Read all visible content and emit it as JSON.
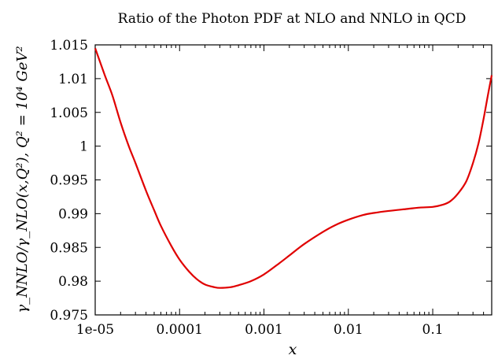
{
  "chart_data": {
    "type": "line",
    "title": "Ratio of the Photon PDF at NLO and NNLO in QCD",
    "xlabel": "x",
    "ylabel": "γ_NNLO/γ_NLO(x,Q²), Q² = 10⁴ GeV²",
    "xscale": "log",
    "xlim": [
      1e-05,
      0.5
    ],
    "ylim": [
      0.975,
      1.015
    ],
    "x_ticks": [
      1e-05,
      0.0001,
      0.001,
      0.01,
      0.1
    ],
    "x_tick_labels": [
      "1e-05",
      "0.0001",
      "0.001",
      "0.01",
      "0.1"
    ],
    "y_ticks": [
      0.975,
      0.98,
      0.985,
      0.99,
      0.995,
      1.0,
      1.005,
      1.01,
      1.015
    ],
    "y_tick_labels": [
      "0.975",
      "0.98",
      "0.985",
      "0.99",
      "0.995",
      "1",
      "1.005",
      "1.01",
      "1.015"
    ],
    "series": [
      {
        "color": "#e00000",
        "x": [
          1e-05,
          1.3e-05,
          1.6e-05,
          2e-05,
          2.5e-05,
          3e-05,
          4e-05,
          5e-05,
          6e-05,
          8e-05,
          0.0001,
          0.00013,
          0.00016,
          0.0002,
          0.00026,
          0.0003,
          0.0004,
          0.0005,
          0.0007,
          0.001,
          0.0015,
          0.002,
          0.003,
          0.005,
          0.007,
          0.01,
          0.015,
          0.02,
          0.03,
          0.05,
          0.07,
          0.1,
          0.13,
          0.16,
          0.2,
          0.25,
          0.3,
          0.35,
          0.4,
          0.45,
          0.5
        ],
        "y": [
          1.0145,
          1.0105,
          1.0075,
          1.0035,
          1.0,
          0.9975,
          0.9934,
          0.9905,
          0.9882,
          0.9852,
          0.9832,
          0.9814,
          0.9803,
          0.9795,
          0.9791,
          0.979,
          0.9791,
          0.9794,
          0.98,
          0.981,
          0.9826,
          0.9838,
          0.9855,
          0.9873,
          0.9883,
          0.9891,
          0.9898,
          0.9901,
          0.9904,
          0.9907,
          0.9909,
          0.991,
          0.9913,
          0.9918,
          0.993,
          0.9948,
          0.9975,
          1.0005,
          1.004,
          1.0075,
          1.0105
        ]
      }
    ],
    "grid": false,
    "legend": "none"
  }
}
